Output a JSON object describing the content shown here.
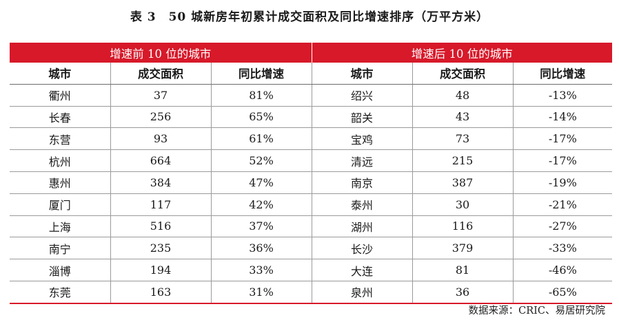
{
  "title": "表 3　50 城新房年初累计成交面积及同比增速排序（万平方米）",
  "groups": {
    "top": "增速前 10 位的城市",
    "bottom": "增速后 10 位的城市"
  },
  "columns": [
    "城市",
    "成交面积",
    "同比增速",
    "城市",
    "成交面积",
    "同比增速"
  ],
  "rows": [
    [
      "衢州",
      "37",
      "81%",
      "绍兴",
      "48",
      "-13%"
    ],
    [
      "长春",
      "256",
      "65%",
      "韶关",
      "43",
      "-14%"
    ],
    [
      "东营",
      "93",
      "61%",
      "宝鸡",
      "73",
      "-17%"
    ],
    [
      "杭州",
      "664",
      "52%",
      "清远",
      "215",
      "-17%"
    ],
    [
      "惠州",
      "384",
      "47%",
      "南京",
      "387",
      "-19%"
    ],
    [
      "厦门",
      "117",
      "42%",
      "泰州",
      "30",
      "-21%"
    ],
    [
      "上海",
      "516",
      "37%",
      "湖州",
      "116",
      "-27%"
    ],
    [
      "南宁",
      "235",
      "36%",
      "长沙",
      "379",
      "-33%"
    ],
    [
      "淄博",
      "194",
      "33%",
      "大连",
      "81",
      "-46%"
    ],
    [
      "东莞",
      "163",
      "31%",
      "泉州",
      "36",
      "-65%"
    ]
  ],
  "source": "数据来源：CRIC、易居研究院",
  "colors": {
    "accent": "#d7192a"
  }
}
